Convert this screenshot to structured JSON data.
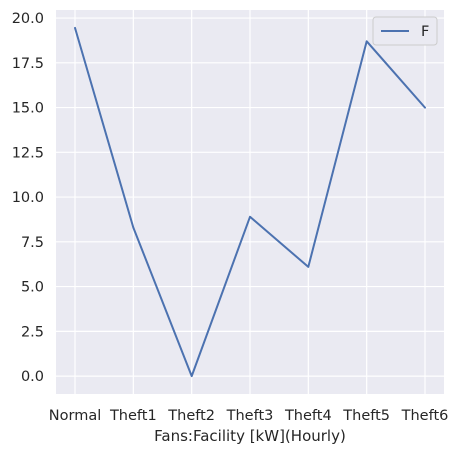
{
  "chart_data": {
    "type": "line",
    "categories": [
      "Normal",
      "Theft1",
      "Theft2",
      "Theft3",
      "Theft4",
      "Theft5",
      "Theft6"
    ],
    "series": [
      {
        "name": "F",
        "values": [
          19.45,
          8.3,
          0.0,
          8.9,
          6.1,
          18.7,
          15.0
        ],
        "color": "#4c72b0"
      }
    ],
    "title": "",
    "xlabel": "Fans:Facility [kW](Hourly)",
    "ylabel": "",
    "ylim": [
      -1.0,
      20.45
    ],
    "yticks": [
      0.0,
      2.5,
      5.0,
      7.5,
      10.0,
      12.5,
      15.0,
      17.5,
      20.0
    ],
    "ytick_labels": [
      "0.0",
      "2.5",
      "5.0",
      "7.5",
      "10.0",
      "12.5",
      "15.0",
      "17.5",
      "20.0"
    ],
    "grid": true,
    "background": "#eaeaf2",
    "legend_position": "top-right"
  }
}
